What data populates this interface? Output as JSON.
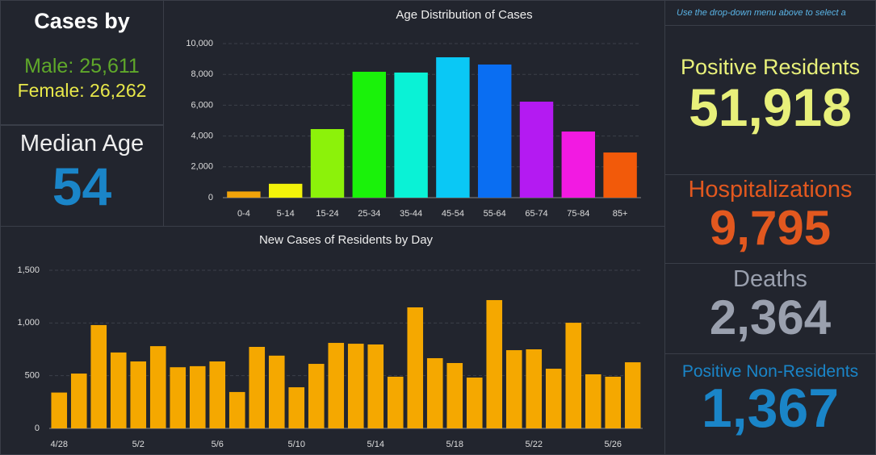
{
  "left": {
    "title": "Cases by",
    "male": "Male: 25,611",
    "female": "Female: 26,262",
    "median_label": "Median Age",
    "median_value": "54"
  },
  "right": {
    "note": "Use the drop-down menu above to select a",
    "stats": [
      {
        "label": "Positive Residents",
        "value": "51,918"
      },
      {
        "label": "Hospitalizations",
        "value": "9,795"
      },
      {
        "label": "Deaths",
        "value": "2,364"
      },
      {
        "label": "Positive Non-Residents",
        "value": "1,367"
      }
    ]
  },
  "chart_data": [
    {
      "type": "bar",
      "title": "Age Distribution of Cases",
      "categories": [
        "0-4",
        "5-14",
        "15-24",
        "25-34",
        "35-44",
        "45-54",
        "55-64",
        "65-74",
        "75-84",
        "85+"
      ],
      "values": [
        400,
        900,
        4450,
        8170,
        8120,
        9110,
        8640,
        6230,
        4290,
        2930
      ],
      "colors": [
        "#f0a30a",
        "#f2f20a",
        "#8cf20a",
        "#1af20a",
        "#0af2d6",
        "#0ac8f5",
        "#0a6ef2",
        "#b41af2",
        "#f21ae2",
        "#f25a0a"
      ],
      "ylim": [
        0,
        10000
      ],
      "yticks": [
        0,
        {
          "value": 2000,
          "label": "2,000"
        },
        {
          "value": 4000,
          "label": "4,000"
        },
        {
          "value": 6000,
          "label": "6,000"
        },
        {
          "value": 8000,
          "label": "8,000"
        },
        {
          "value": 10000,
          "label": "10,000"
        }
      ],
      "grid": true
    },
    {
      "type": "bar",
      "title": "New Cases of Residents by Day",
      "categories": [
        "4/28",
        null,
        null,
        null,
        "5/2",
        null,
        null,
        null,
        "5/6",
        null,
        null,
        null,
        "5/10",
        null,
        null,
        null,
        "5/14",
        null,
        null,
        null,
        "5/18",
        null,
        null,
        null,
        "5/22",
        null,
        null,
        null,
        "5/26",
        null
      ],
      "values": [
        340,
        520,
        980,
        720,
        635,
        780,
        580,
        590,
        635,
        345,
        773,
        690,
        390,
        612,
        811,
        803,
        796,
        490,
        1148,
        666,
        620,
        482,
        1217,
        742,
        750,
        566,
        1002,
        513,
        490,
        627
      ],
      "color": "#f5a800",
      "ylim": [
        0,
        1500
      ],
      "yticks": [
        0,
        500,
        {
          "value": 1000,
          "label": "1,000"
        },
        {
          "value": 1500,
          "label": "1,500"
        }
      ],
      "grid": true
    }
  ]
}
